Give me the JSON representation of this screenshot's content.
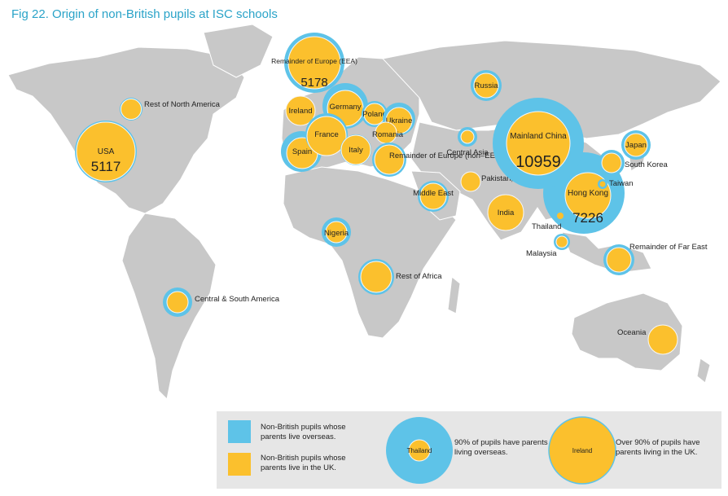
{
  "title": "Fig 22. Origin of non-British pupils at ISC schools",
  "colors": {
    "overseas": "#5ec3e8",
    "uk": "#fbc02d",
    "land": "#c8c8c8",
    "ring": "#f7f7f7"
  },
  "regions": [
    {
      "id": "usa",
      "label": "USA",
      "value": "5117"
    },
    {
      "id": "rest-north-america",
      "label": "Rest of North America"
    },
    {
      "id": "central-south-america",
      "label": "Central & South America"
    },
    {
      "id": "remainder-europe-eea",
      "label": "Remainder of Europe (EEA)",
      "value": "5178"
    },
    {
      "id": "ireland",
      "label": "Ireland"
    },
    {
      "id": "germany",
      "label": "Germany"
    },
    {
      "id": "poland",
      "label": "Poland"
    },
    {
      "id": "ukraine",
      "label": "Ukraine"
    },
    {
      "id": "france",
      "label": "France"
    },
    {
      "id": "romania",
      "label": "Romania"
    },
    {
      "id": "spain",
      "label": "Spain"
    },
    {
      "id": "italy",
      "label": "Italy"
    },
    {
      "id": "remainder-europe-non-eea",
      "label": "Remainder of Europe (non–EEA)"
    },
    {
      "id": "russia",
      "label": "Russia"
    },
    {
      "id": "central-asia",
      "label": "Central Asia"
    },
    {
      "id": "middle-east",
      "label": "Middle East"
    },
    {
      "id": "pakistan-etc",
      "label": "Pakistan, Sri Lanka, Bangladesh"
    },
    {
      "id": "india",
      "label": "India"
    },
    {
      "id": "mainland-china",
      "label": "Mainland China",
      "value": "10959"
    },
    {
      "id": "hong-kong",
      "label": "Hong Kong",
      "value": "7226"
    },
    {
      "id": "japan",
      "label": "Japan"
    },
    {
      "id": "south-korea",
      "label": "South Korea"
    },
    {
      "id": "taiwan",
      "label": "Taiwan"
    },
    {
      "id": "thailand",
      "label": "Thailand"
    },
    {
      "id": "malaysia",
      "label": "Malaysia"
    },
    {
      "id": "remainder-far-east",
      "label": "Remainder of Far East"
    },
    {
      "id": "nigeria",
      "label": "Nigeria"
    },
    {
      "id": "rest-of-africa",
      "label": "Rest of Africa"
    },
    {
      "id": "oceania",
      "label": "Oceania"
    }
  ],
  "legend": {
    "overseas_text": "Non-British pupils whose parents live overseas.",
    "uk_text": "Non-British pupils whose parents live in the UK.",
    "example1_label": "Thailand",
    "example1_text": "90% of pupils have parents living overseas.",
    "example2_label": "Ireland",
    "example2_text": "Over 90% of pupils have parents living in the UK."
  }
}
